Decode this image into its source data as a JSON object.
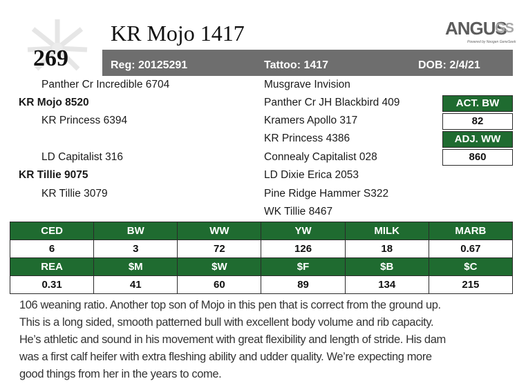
{
  "lot_number": "269",
  "animal_name": "KR Mojo 1417",
  "logo": {
    "word": "ANGUS",
    "suffix": "GS",
    "tagline": "Powered by Neogen GeneSeek"
  },
  "registration": {
    "reg": "Reg: 20125291",
    "tattoo": "Tattoo: 1417",
    "dob": "DOB: 2/4/21"
  },
  "sire_side": {
    "sire_sire": "Panther Cr Incredible 6704",
    "sire": "KR Mojo 8520",
    "sire_dam": "KR Princess 6394"
  },
  "dam_side": {
    "dam_sire": "LD Capitalist 316",
    "dam": "KR Tillie 9075",
    "dam_dam": "KR Tillie 3079"
  },
  "third_generation": [
    "Musgrave Invision",
    "Panther Cr JH Blackbird 409",
    "Kramers Apollo 317",
    "KR Princess 4386",
    "Connealy Capitalist 028",
    "LD Dixie Erica 2053",
    "Pine Ridge Hammer S322",
    "WK Tillie 8467"
  ],
  "weights": {
    "act_bw_label": "ACT. BW",
    "act_bw": "82",
    "adj_ww_label": "ADJ. WW",
    "adj_ww": "860"
  },
  "epds": {
    "row1_headers": [
      "CED",
      "BW",
      "WW",
      "YW",
      "MILK",
      "MARB"
    ],
    "row1_values": [
      "6",
      "3",
      "72",
      "126",
      "18",
      "0.67"
    ],
    "row2_headers": [
      "REA",
      "$M",
      "$W",
      "$F",
      "$B",
      "$C"
    ],
    "row2_values": [
      "0.31",
      "41",
      "60",
      "89",
      "134",
      "215"
    ]
  },
  "description": [
    "106 weaning ratio. Another top son of Mojo in this pen that is correct from the ground up.",
    "This is a long sided, smooth patterned bull with excellent body volume and rib capacity.",
    "He’s athletic and sound in his movement with great flexibility and length of stride. His dam",
    "was a first calf heifer with extra fleshing ability and udder quality. We’re expecting more",
    "good things from her in the years to come."
  ],
  "colors": {
    "header_green": "#1f6b30",
    "reg_bar": "#6e6e6e"
  }
}
